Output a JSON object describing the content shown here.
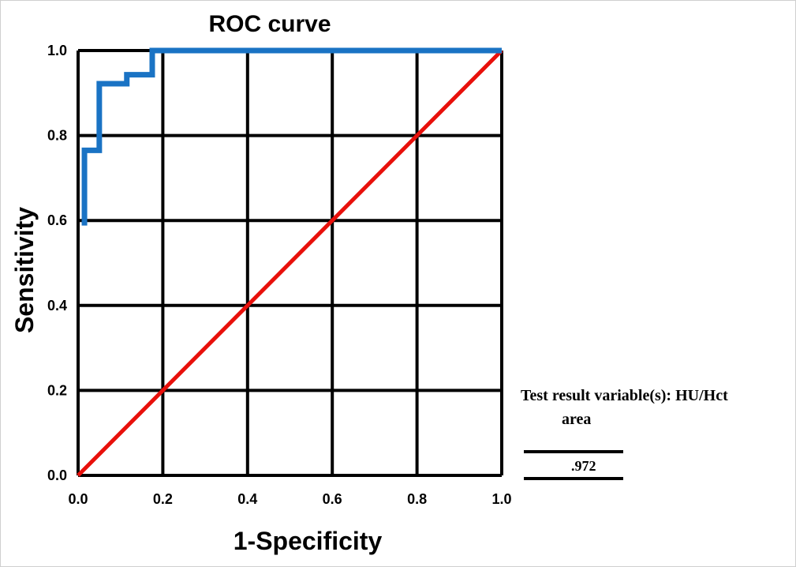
{
  "chart_data": {
    "type": "line",
    "title": "ROC curve",
    "xlabel": "1-Specificity",
    "ylabel": "Sensitivity",
    "xlim": [
      0,
      1
    ],
    "ylim": [
      0,
      1
    ],
    "grid": true,
    "x_ticks": [
      "0.0",
      "0.2",
      "0.4",
      "0.6",
      "0.8",
      "1.0"
    ],
    "y_ticks": [
      "0.0",
      "0.2",
      "0.4",
      "0.6",
      "0.8",
      "1.0"
    ],
    "series": [
      {
        "color": "#1a73c4",
        "x": [
          0.015,
          0.015,
          0.05,
          0.05,
          0.115,
          0.115,
          0.175,
          0.175,
          1.0
        ],
        "y": [
          0.588,
          0.765,
          0.765,
          0.922,
          0.922,
          0.943,
          0.943,
          1.0,
          1.0
        ]
      },
      {
        "color": "#e8100b",
        "x": [
          0.0,
          1.0
        ],
        "y": [
          0.0,
          1.0
        ]
      }
    ],
    "table": {
      "header": "Test result variable(s): HU/Hct",
      "column": "area",
      "value": ".972"
    }
  }
}
